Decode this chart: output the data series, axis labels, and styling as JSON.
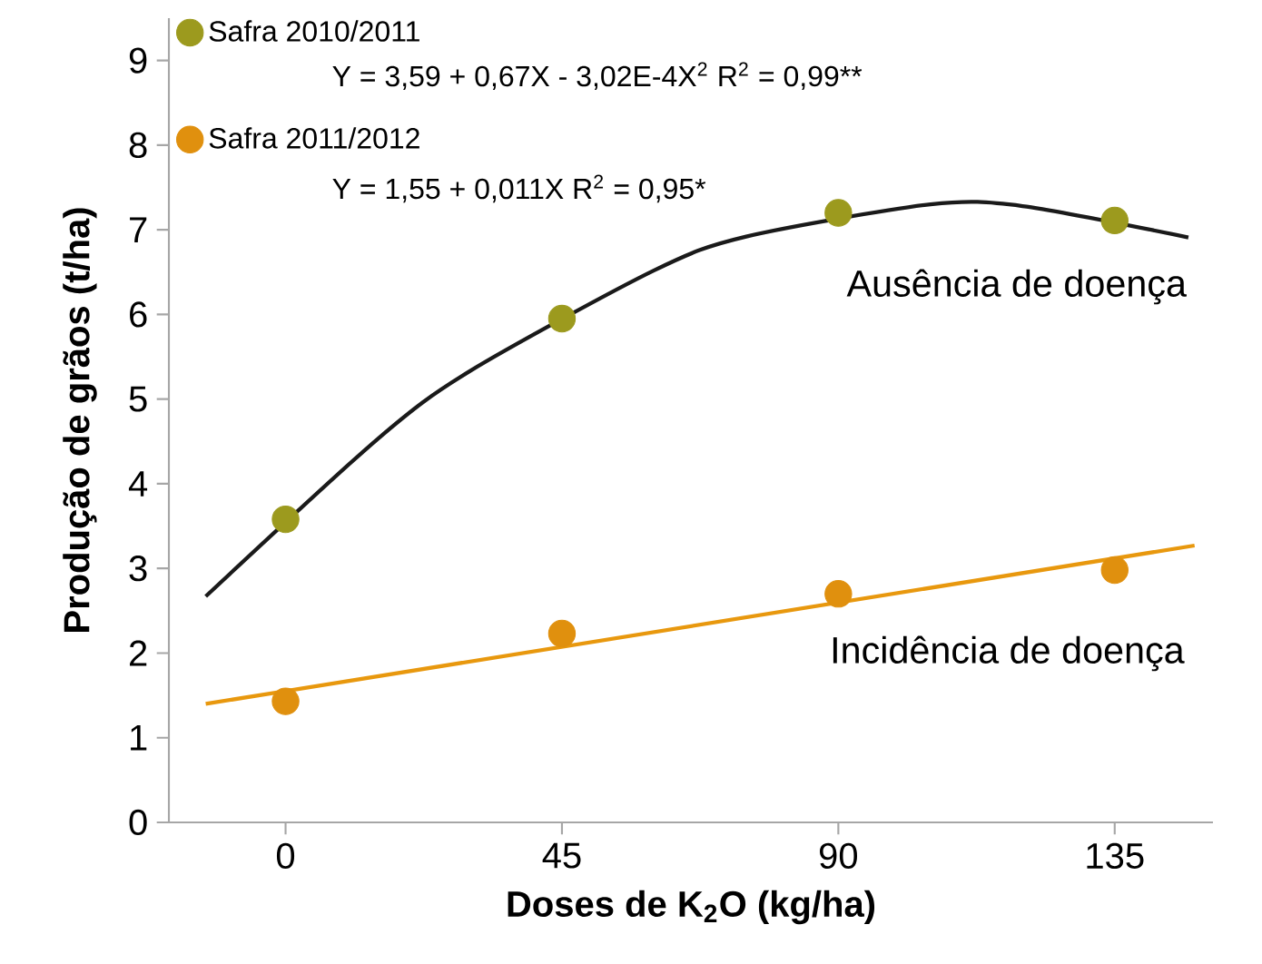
{
  "chart_data": {
    "type": "scatter",
    "xlabel": "Doses de K$_{2}$O (kg/ha)",
    "ylabel": "Produção de grãos (t/ha)",
    "xlim": [
      -19,
      151
    ],
    "ylim": [
      0,
      9.5
    ],
    "xticks": [
      0,
      45,
      90,
      135
    ],
    "yticks": [
      0,
      1,
      2,
      3,
      4,
      5,
      6,
      7,
      8,
      9
    ],
    "grid": false,
    "legend": "top left",
    "series": [
      {
        "name": "Safra 2010/2011",
        "marker": "circle",
        "color": "#9c9a1e",
        "x": [
          0,
          45,
          90,
          135
        ],
        "values": [
          3.58,
          5.95,
          7.2,
          7.11
        ]
      },
      {
        "name": "Safra 2011/2012",
        "marker": "circle",
        "color": "#e0900e",
        "x": [
          0,
          45,
          90,
          135
        ],
        "values": [
          1.43,
          2.23,
          2.7,
          2.98
        ]
      },
      {
        "type": "line",
        "marker": "none",
        "color": "#1a1a1a",
        "x": [
          -13,
          15,
          30,
          60,
          75,
          105,
          120,
          147
        ],
        "values": [
          2.67,
          4.53,
          5.33,
          6.52,
          6.92,
          7.3,
          7.28,
          6.91
        ]
      },
      {
        "type": "line",
        "marker": "none",
        "color": "#e8980e",
        "x": [
          -13,
          148
        ],
        "values": [
          1.4,
          3.27
        ]
      }
    ],
    "annotations": [
      "Y = 3,59 + 0,67X - 3,02E-4X$^{2}$   R$^{2}$ = 0,99**",
      "Y = 1,55 + 0,011X   R$^{2}$ = 0,95*",
      "Ausência de doença",
      "Incidência de doença"
    ]
  }
}
